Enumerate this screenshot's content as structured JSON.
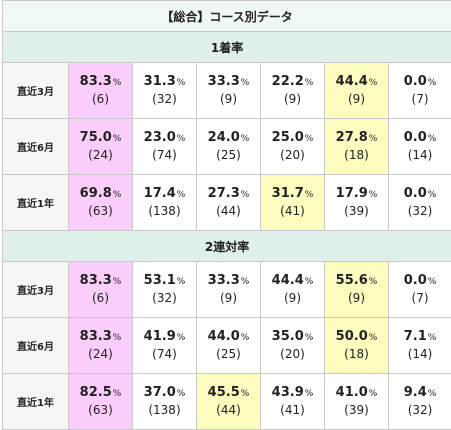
{
  "title": "【総合】コース別データ",
  "colors": {
    "header_bg": "#eff8f4",
    "section_bg": "#dff0ea",
    "highlight_pink": "#fbcdfb",
    "highlight_yellow": "#fdfcbf"
  },
  "percent_unit": "%",
  "sections": [
    {
      "title": "1着率",
      "rows": [
        {
          "label": "直近3月",
          "cells": [
            {
              "pct": "83.3",
              "count": "(6)",
              "hl": "pink"
            },
            {
              "pct": "31.3",
              "count": "(32)",
              "hl": ""
            },
            {
              "pct": "33.3",
              "count": "(9)",
              "hl": ""
            },
            {
              "pct": "22.2",
              "count": "(9)",
              "hl": ""
            },
            {
              "pct": "44.4",
              "count": "(9)",
              "hl": "yellow"
            },
            {
              "pct": "0.0",
              "count": "(7)",
              "hl": ""
            }
          ]
        },
        {
          "label": "直近6月",
          "cells": [
            {
              "pct": "75.0",
              "count": "(24)",
              "hl": "pink"
            },
            {
              "pct": "23.0",
              "count": "(74)",
              "hl": ""
            },
            {
              "pct": "24.0",
              "count": "(25)",
              "hl": ""
            },
            {
              "pct": "25.0",
              "count": "(20)",
              "hl": ""
            },
            {
              "pct": "27.8",
              "count": "(18)",
              "hl": "yellow"
            },
            {
              "pct": "0.0",
              "count": "(14)",
              "hl": ""
            }
          ]
        },
        {
          "label": "直近1年",
          "cells": [
            {
              "pct": "69.8",
              "count": "(63)",
              "hl": "pink"
            },
            {
              "pct": "17.4",
              "count": "(138)",
              "hl": ""
            },
            {
              "pct": "27.3",
              "count": "(44)",
              "hl": ""
            },
            {
              "pct": "31.7",
              "count": "(41)",
              "hl": "yellow"
            },
            {
              "pct": "17.9",
              "count": "(39)",
              "hl": ""
            },
            {
              "pct": "0.0",
              "count": "(32)",
              "hl": ""
            }
          ]
        }
      ]
    },
    {
      "title": "2連対率",
      "rows": [
        {
          "label": "直近3月",
          "cells": [
            {
              "pct": "83.3",
              "count": "(6)",
              "hl": "pink"
            },
            {
              "pct": "53.1",
              "count": "(32)",
              "hl": ""
            },
            {
              "pct": "33.3",
              "count": "(9)",
              "hl": ""
            },
            {
              "pct": "44.4",
              "count": "(9)",
              "hl": ""
            },
            {
              "pct": "55.6",
              "count": "(9)",
              "hl": "yellow"
            },
            {
              "pct": "0.0",
              "count": "(7)",
              "hl": ""
            }
          ]
        },
        {
          "label": "直近6月",
          "cells": [
            {
              "pct": "83.3",
              "count": "(24)",
              "hl": "pink"
            },
            {
              "pct": "41.9",
              "count": "(74)",
              "hl": ""
            },
            {
              "pct": "44.0",
              "count": "(25)",
              "hl": ""
            },
            {
              "pct": "35.0",
              "count": "(20)",
              "hl": ""
            },
            {
              "pct": "50.0",
              "count": "(18)",
              "hl": "yellow"
            },
            {
              "pct": "7.1",
              "count": "(14)",
              "hl": ""
            }
          ]
        },
        {
          "label": "直近1年",
          "cells": [
            {
              "pct": "82.5",
              "count": "(63)",
              "hl": "pink"
            },
            {
              "pct": "37.0",
              "count": "(138)",
              "hl": ""
            },
            {
              "pct": "45.5",
              "count": "(44)",
              "hl": "yellow"
            },
            {
              "pct": "43.9",
              "count": "(41)",
              "hl": ""
            },
            {
              "pct": "41.0",
              "count": "(39)",
              "hl": ""
            },
            {
              "pct": "9.4",
              "count": "(32)",
              "hl": ""
            }
          ]
        }
      ]
    }
  ]
}
